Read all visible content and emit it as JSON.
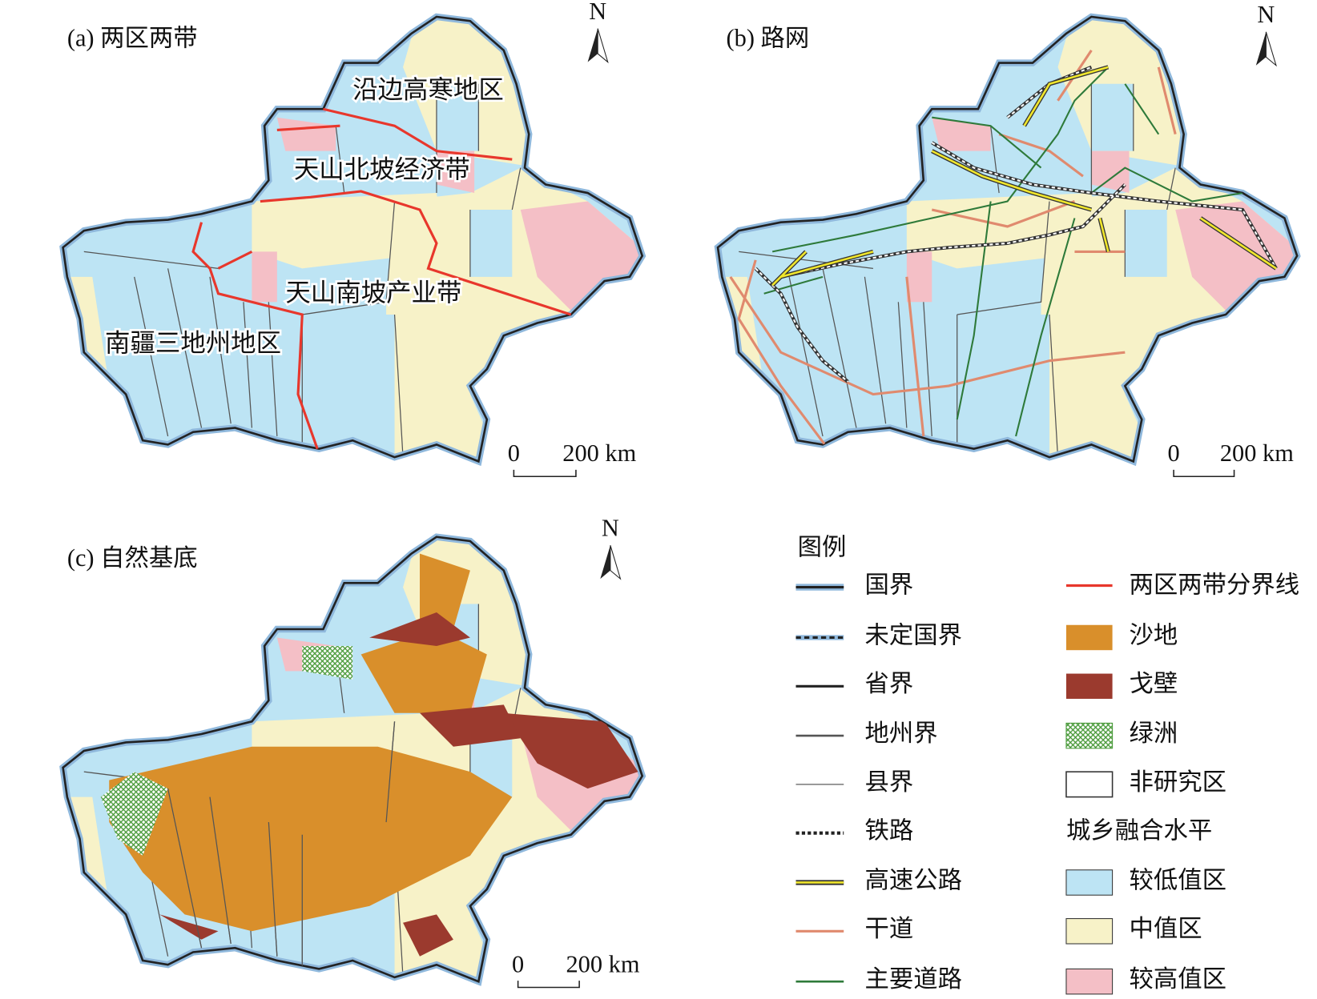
{
  "panels": [
    {
      "title": "(a) 两区两带",
      "north": "N",
      "scale": [
        "0",
        "200 km"
      ],
      "labels": [
        "沿边高寒地区",
        "天山北坡经济带",
        "天山南坡产业带",
        "南疆三地州地区"
      ]
    },
    {
      "title": "(b) 路网",
      "north": "N",
      "scale": [
        "0",
        "200 km"
      ]
    },
    {
      "title": "(c) 自然基底",
      "north": "N",
      "scale": [
        "0",
        "200 km"
      ]
    }
  ],
  "legend": {
    "title": "图例",
    "lines": [
      "国界",
      "未定国界",
      "省界",
      "地州界",
      "县界",
      "铁路",
      "高速公路",
      "干道",
      "主要道路"
    ],
    "features": [
      "两区两带分界线",
      "沙地",
      "戈壁",
      "绿洲",
      "非研究区"
    ],
    "level_title": "城乡融合水平",
    "levels": [
      "较低值区",
      "中值区",
      "较高值区"
    ]
  }
}
